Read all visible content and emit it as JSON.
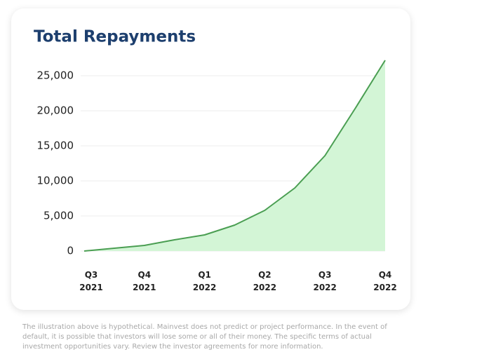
{
  "chart_data": {
    "type": "area",
    "title": "Total Repayments",
    "categories": [
      "Q3 2021",
      null,
      "Q4 2021",
      null,
      "Q1 2022",
      null,
      "Q2 2022",
      null,
      "Q3 2022",
      null,
      "Q4 2022"
    ],
    "values": [
      0,
      400,
      800,
      1600,
      2300,
      3700,
      5800,
      9000,
      13600,
      20300,
      27200
    ],
    "color": "#4a9e52",
    "fill": "#d3f5d6",
    "ylim": [
      0,
      27200
    ],
    "yticks": [
      0,
      {
        "value": 5000,
        "label": "5,000"
      },
      {
        "value": 10000,
        "label": "10,000"
      },
      {
        "value": 15000,
        "label": "15,000"
      },
      {
        "value": 20000,
        "label": "20,000"
      },
      {
        "value": 25000,
        "label": "25,000"
      }
    ],
    "grid": true
  },
  "footnote": "The illustration above is hypothetical. Mainvest does not predict or project performance. In the event of default, it is possible that investors will lose some or all of their money. The specific terms of actual investment opportunities vary. Review the investor agreements for more information."
}
